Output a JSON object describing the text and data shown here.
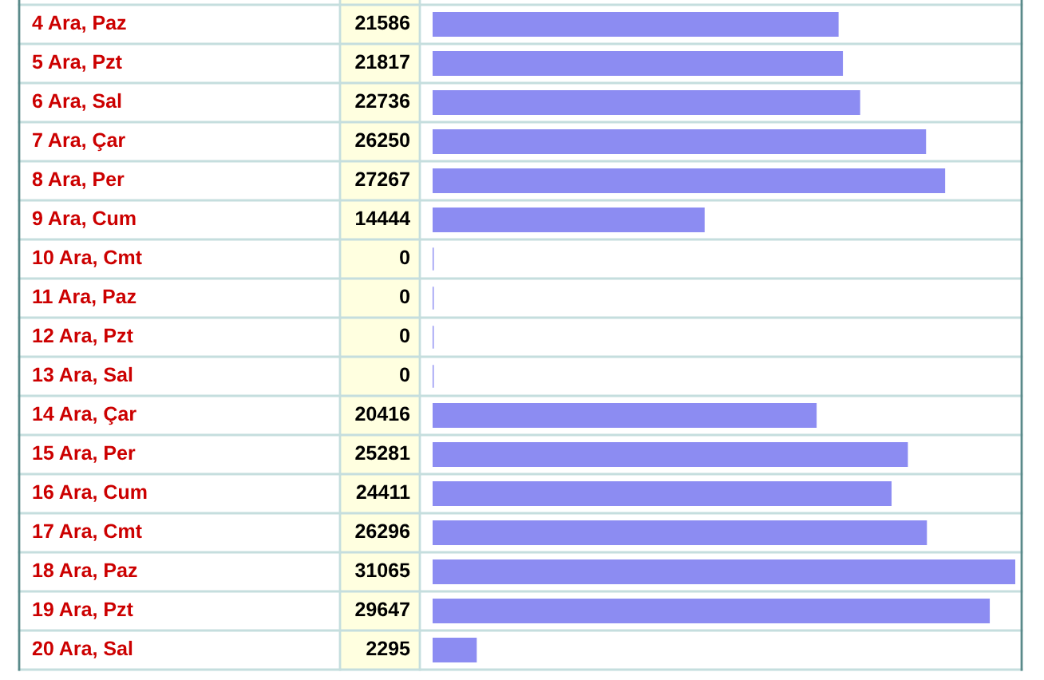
{
  "chart_data": {
    "type": "bar",
    "orientation": "horizontal",
    "data_labels": true,
    "color": "#8c8cf2",
    "categories": [
      "4 Ara, Paz",
      "5 Ara, Pzt",
      "6 Ara, Sal",
      "7 Ara, Çar",
      "8 Ara, Per",
      "9 Ara, Cum",
      "10 Ara, Cmt",
      "11 Ara, Paz",
      "12 Ara, Pzt",
      "13 Ara, Sal",
      "14 Ara, Çar",
      "15 Ara, Per",
      "16 Ara, Cum",
      "17 Ara, Cmt",
      "18 Ara, Paz",
      "19 Ara, Pzt",
      "20 Ara, Sal"
    ],
    "values": [
      21586,
      21817,
      22736,
      26250,
      27267,
      14444,
      0,
      0,
      0,
      0,
      20416,
      25281,
      24411,
      26296,
      31065,
      29647,
      2295
    ]
  }
}
